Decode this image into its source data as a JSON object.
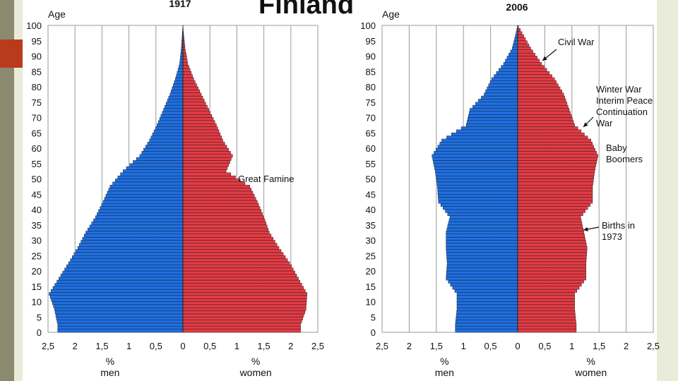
{
  "title": "Finland",
  "colors": {
    "men": "#1f6fe0",
    "women": "#e23b45",
    "edge": "#111111",
    "grid": "#9a9a9a"
  },
  "chart_data": [
    {
      "type": "bar",
      "title": "1917",
      "ylabel": "Age",
      "x_ticks": [
        "2,5",
        "2",
        "1,5",
        "1",
        "0,5",
        "0",
        "0,5",
        "1",
        "1,5",
        "2",
        "2,5"
      ],
      "y_ticks": [
        "0",
        "5",
        "10",
        "15",
        "20",
        "25",
        "30",
        "35",
        "40",
        "45",
        "50",
        "55",
        "60",
        "65",
        "70",
        "75",
        "80",
        "85",
        "90",
        "95",
        "100"
      ],
      "xlabel_men": "%\nmen",
      "xlabel_women": "%\nwomen",
      "xlim": [
        -2.5,
        2.5
      ],
      "ylim": [
        0,
        100
      ],
      "age_band_step": 5,
      "series": [
        {
          "name": "men",
          "values": [
            2.32,
            2.38,
            2.48,
            2.3,
            2.12,
            1.95,
            1.8,
            1.62,
            1.48,
            1.35,
            1.11,
            0.8,
            0.62,
            0.48,
            0.36,
            0.24,
            0.14,
            0.06,
            0.03,
            0.01
          ]
        },
        {
          "name": "women",
          "values": [
            2.18,
            2.28,
            2.3,
            2.14,
            1.98,
            1.78,
            1.6,
            1.5,
            1.38,
            1.24,
            0.8,
            0.92,
            0.74,
            0.62,
            0.48,
            0.34,
            0.2,
            0.09,
            0.04,
            0.01
          ]
        }
      ],
      "annotations": [
        {
          "text": "Great Famine",
          "age": 50
        }
      ]
    },
    {
      "type": "bar",
      "title": "2006",
      "ylabel": "Age",
      "x_ticks": [
        "2,5",
        "2",
        "1,5",
        "1",
        "0,5",
        "0",
        "0,5",
        "1",
        "1,5",
        "2",
        "2,5"
      ],
      "y_ticks": [
        "0",
        "5",
        "10",
        "15",
        "20",
        "25",
        "30",
        "35",
        "40",
        "45",
        "50",
        "55",
        "60",
        "65",
        "70",
        "75",
        "80",
        "85",
        "90",
        "95",
        "100"
      ],
      "xlabel_men": "%\nmen",
      "xlabel_women": "%\nwomen",
      "xlim": [
        -2.5,
        2.5
      ],
      "ylim": [
        0,
        100
      ],
      "age_band_step": 5,
      "series": [
        {
          "name": "men",
          "values": [
            1.15,
            1.12,
            1.12,
            1.32,
            1.3,
            1.32,
            1.32,
            1.25,
            1.46,
            1.48,
            1.52,
            1.58,
            1.4,
            0.95,
            0.88,
            0.62,
            0.48,
            0.26,
            0.1,
            0.03
          ]
        },
        {
          "name": "women",
          "values": [
            1.08,
            1.05,
            1.05,
            1.26,
            1.26,
            1.28,
            1.22,
            1.16,
            1.38,
            1.38,
            1.42,
            1.48,
            1.35,
            1.05,
            0.95,
            0.85,
            0.68,
            0.44,
            0.24,
            0.08
          ]
        }
      ],
      "annotations": [
        {
          "text": "Civil War",
          "age": 88
        },
        {
          "text": "Winter War\nInterim Peace\nContinuation\nWar",
          "age": 67
        },
        {
          "text": "Baby\nBoomers",
          "age": 59
        },
        {
          "text": "Births in\n1973",
          "age": 33
        }
      ]
    }
  ]
}
